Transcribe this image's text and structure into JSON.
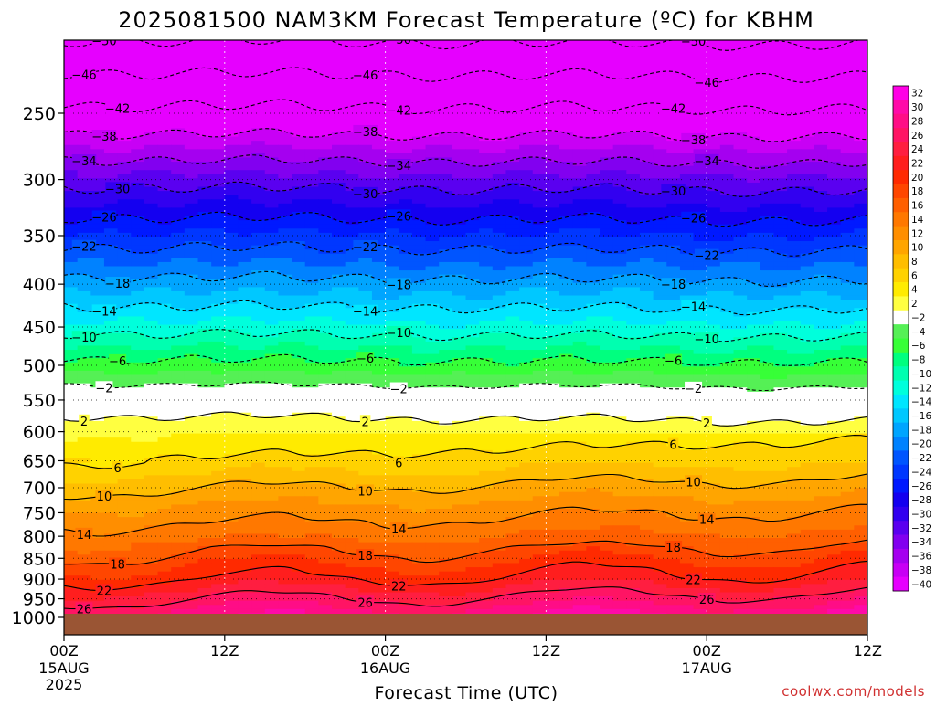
{
  "chart_data": {
    "type": "heatmap",
    "title": "2025081500 NAM3KM Forecast Temperature (ºC) for KBHM",
    "xlabel": "Forecast Time (UTC)",
    "credit": "coolwx.com/models",
    "x_ticks": [
      {
        "hour": 0,
        "label": "00Z",
        "sub1": "15AUG",
        "sub2": "2025"
      },
      {
        "hour": 12,
        "label": "12Z",
        "sub1": "",
        "sub2": ""
      },
      {
        "hour": 24,
        "label": "00Z",
        "sub1": "16AUG",
        "sub2": ""
      },
      {
        "hour": 36,
        "label": "12Z",
        "sub1": "",
        "sub2": ""
      },
      {
        "hour": 48,
        "label": "00Z",
        "sub1": "17AUG",
        "sub2": ""
      },
      {
        "hour": 60,
        "label": "12Z",
        "sub1": "",
        "sub2": ""
      }
    ],
    "xlim": [
      0,
      60
    ],
    "y_scale": "log pressure (hPa), inverted",
    "ylim": [
      1000,
      200
    ],
    "y_ticks": [
      250,
      300,
      350,
      400,
      450,
      500,
      550,
      600,
      650,
      700,
      750,
      800,
      850,
      900,
      950,
      1000
    ],
    "ground_level_hPa": 990,
    "colorbar_levels": [
      32,
      30,
      28,
      26,
      24,
      22,
      20,
      18,
      16,
      14,
      12,
      10,
      8,
      6,
      4,
      2,
      -2,
      -4,
      -6,
      -8,
      -10,
      -12,
      -14,
      -16,
      -18,
      -20,
      -22,
      -24,
      -26,
      -28,
      -30,
      -32,
      -34,
      -36,
      -38,
      -40
    ],
    "colorbar_colors": [
      "#ff00e6",
      "#ff0aa8",
      "#ff0d86",
      "#ff1464",
      "#ff1e40",
      "#ff1e1e",
      "#ff2a00",
      "#ff4600",
      "#ff5f00",
      "#ff7800",
      "#ff8e00",
      "#ffa500",
      "#ffbe00",
      "#ffd200",
      "#ffeb00",
      "#ffff40",
      "#ffffff",
      "#55f055",
      "#37ff37",
      "#00ff7f",
      "#00ffb0",
      "#00ffdc",
      "#00e6ff",
      "#00c8ff",
      "#00a5ff",
      "#0082ff",
      "#0055ff",
      "#0037ff",
      "#0019ff",
      "#1400f0",
      "#3200f0",
      "#5a00f0",
      "#8200f0",
      "#a500f0",
      "#c800f5",
      "#e600ff"
    ],
    "contour_levels_labeled": [
      26,
      22,
      18,
      14,
      10,
      6,
      2,
      -2,
      -6,
      -10,
      -14,
      -18,
      -22,
      -26,
      -30,
      -34,
      -38,
      -42,
      -46,
      -50
    ],
    "temperature_profile_hour0": [
      {
        "p": 990,
        "t": 28.5
      },
      {
        "p": 950,
        "t": 25.5
      },
      {
        "p": 900,
        "t": 21.5
      },
      {
        "p": 850,
        "t": 18.5
      },
      {
        "p": 800,
        "t": 15.0
      },
      {
        "p": 750,
        "t": 12.5
      },
      {
        "p": 700,
        "t": 9.5
      },
      {
        "p": 650,
        "t": 6.0
      },
      {
        "p": 600,
        "t": 3.5
      },
      {
        "p": 550,
        "t": 0.5
      },
      {
        "p": 500,
        "t": -5.0
      },
      {
        "p": 450,
        "t": -11.0
      },
      {
        "p": 400,
        "t": -17.0
      },
      {
        "p": 350,
        "t": -23.5
      },
      {
        "p": 300,
        "t": -31.0
      },
      {
        "p": 250,
        "t": -41.0
      },
      {
        "p": 200,
        "t": -51.0
      }
    ]
  }
}
